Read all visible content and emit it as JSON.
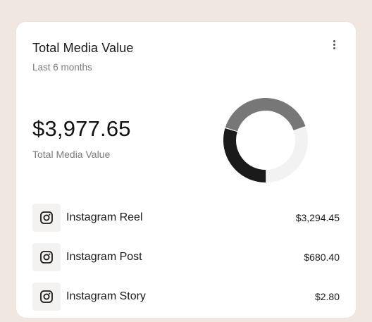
{
  "card": {
    "title": "Total Media Value",
    "subtitle": "Last 6 months",
    "menu_icon": "more-vertical-icon"
  },
  "summary": {
    "amount": "$3,977.65",
    "label": "Total Media Value"
  },
  "donut": {
    "colors": [
      "#777777",
      "#f2f2f2",
      "#1a1a1a"
    ],
    "segments": [
      {
        "name": "Instagram Reel",
        "value": 3294.45
      },
      {
        "name": "Instagram Post",
        "value": 680.4
      },
      {
        "name": "Instagram Story",
        "value": 2.8
      }
    ]
  },
  "breakdown": [
    {
      "label": "Instagram Reel",
      "value": "$3,294.45",
      "icon": "instagram-icon"
    },
    {
      "label": "Instagram Post",
      "value": "$680.40",
      "icon": "instagram-icon"
    },
    {
      "label": "Instagram Story",
      "value": "$2.80",
      "icon": "instagram-icon"
    }
  ]
}
